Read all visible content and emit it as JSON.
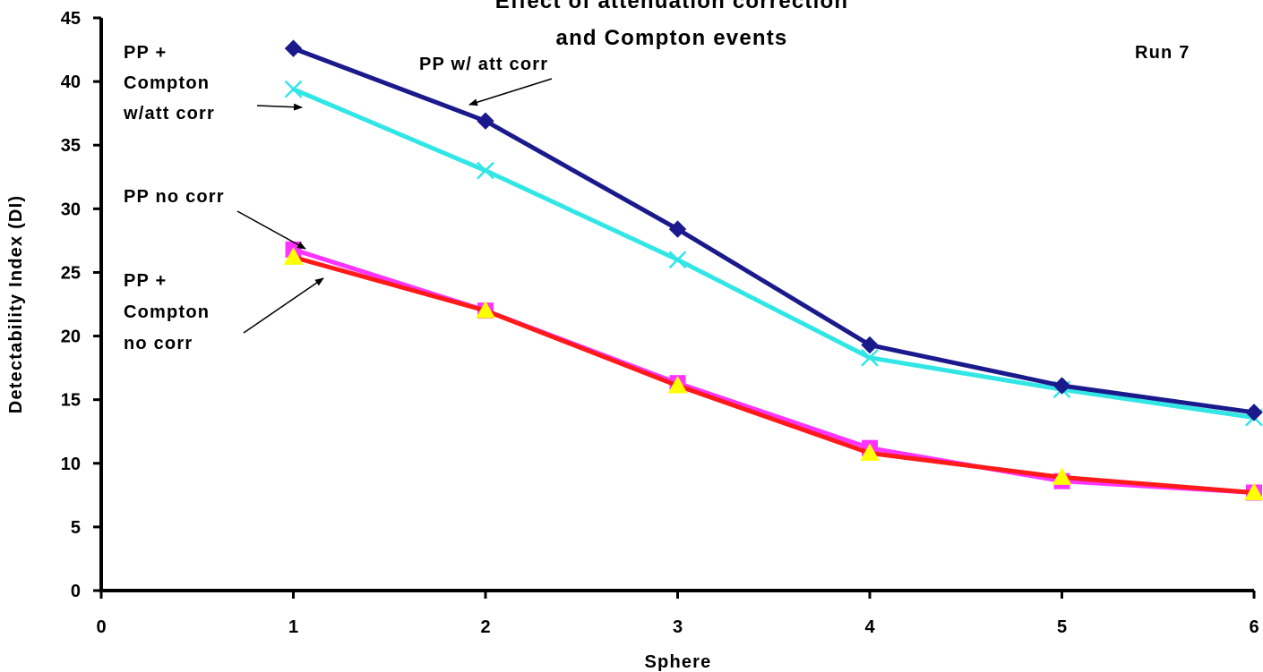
{
  "chart_data": {
    "type": "line",
    "title_lines": [
      "Effect of attenuation correction",
      "and Compton events"
    ],
    "xlabel": "Sphere",
    "ylabel": "Detectability Index (DI)",
    "xlim": [
      0,
      6
    ],
    "ylim": [
      0,
      45
    ],
    "x_ticks": [
      0,
      1,
      2,
      3,
      4,
      5,
      6
    ],
    "y_ticks": [
      0,
      5,
      10,
      15,
      20,
      25,
      30,
      35,
      40,
      45
    ],
    "grid": false,
    "run_label": "Run 7",
    "x": [
      1,
      2,
      3,
      4,
      5,
      6
    ],
    "series": [
      {
        "key": "pp_att",
        "color": "#1a1a8c",
        "marker": "diamond",
        "values": [
          42.6,
          36.9,
          28.4,
          19.3,
          16.1,
          14.0
        ]
      },
      {
        "key": "ppc_att",
        "color": "#33e6e6",
        "marker": "x",
        "values": [
          39.4,
          33.0,
          26.0,
          18.3,
          15.8,
          13.6
        ]
      },
      {
        "key": "pp_no",
        "color": "#ff33ff",
        "marker": "square",
        "values": [
          26.8,
          22.0,
          16.3,
          11.2,
          8.6,
          7.7
        ]
      },
      {
        "key": "ppc_no",
        "color": "#ff1a1a",
        "marker": "triangle",
        "marker_fill": "#ffff00",
        "values": [
          26.2,
          22.0,
          16.1,
          10.8,
          8.9,
          7.7
        ]
      }
    ],
    "annotations": [
      {
        "key": "a_ppc_att",
        "lines": [
          "PP +",
          "Compton",
          "w/att corr"
        ]
      },
      {
        "key": "a_pp_att",
        "lines": [
          "PP w/ att corr"
        ]
      },
      {
        "key": "a_pp_no",
        "lines": [
          "PP no corr"
        ]
      },
      {
        "key": "a_ppc_no",
        "lines": [
          "PP +",
          "Compton",
          "no corr"
        ]
      }
    ]
  }
}
